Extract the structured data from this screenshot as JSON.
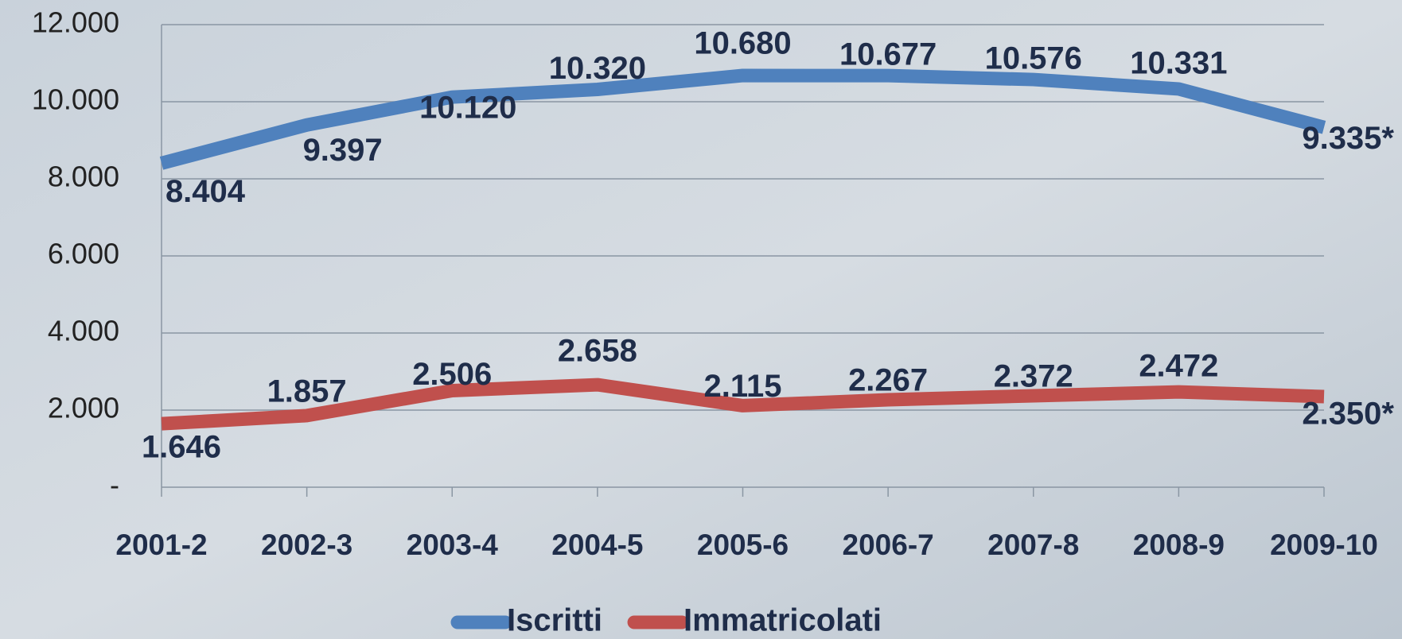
{
  "chart_data": {
    "type": "line",
    "categories": [
      "2001-2",
      "2002-3",
      "2003-4",
      "2004-5",
      "2005-6",
      "2006-7",
      "2007-8",
      "2008-9",
      "2009-10"
    ],
    "series": [
      {
        "name": "Iscritti",
        "color": "#4f81bd",
        "values": [
          8404,
          9397,
          10120,
          10320,
          10680,
          10677,
          10576,
          10331,
          9335
        ],
        "value_labels": [
          "8.404",
          "9.397",
          "10.120",
          "10.320",
          "10.680",
          "10.677",
          "10.576",
          "10.331",
          "9.335*"
        ]
      },
      {
        "name": "Immatricolati",
        "color": "#c0504d",
        "values": [
          1646,
          1857,
          2506,
          2658,
          2115,
          2267,
          2372,
          2472,
          2350
        ],
        "value_labels": [
          "1.646",
          "1.857",
          "2.506",
          "2.658",
          "2.115",
          "2.267",
          "2.372",
          "2.472",
          "2.350*"
        ]
      }
    ],
    "ylim": [
      0,
      12000
    ],
    "yticks": [
      {
        "value": 0,
        "label": "-"
      },
      {
        "value": 2000,
        "label": "2.000"
      },
      {
        "value": 4000,
        "label": "4.000"
      },
      {
        "value": 6000,
        "label": "6.000"
      },
      {
        "value": 8000,
        "label": "8.000"
      },
      {
        "value": 10000,
        "label": "10.000"
      },
      {
        "value": 12000,
        "label": "12.000"
      }
    ],
    "grid": true,
    "legend": "bottom"
  }
}
